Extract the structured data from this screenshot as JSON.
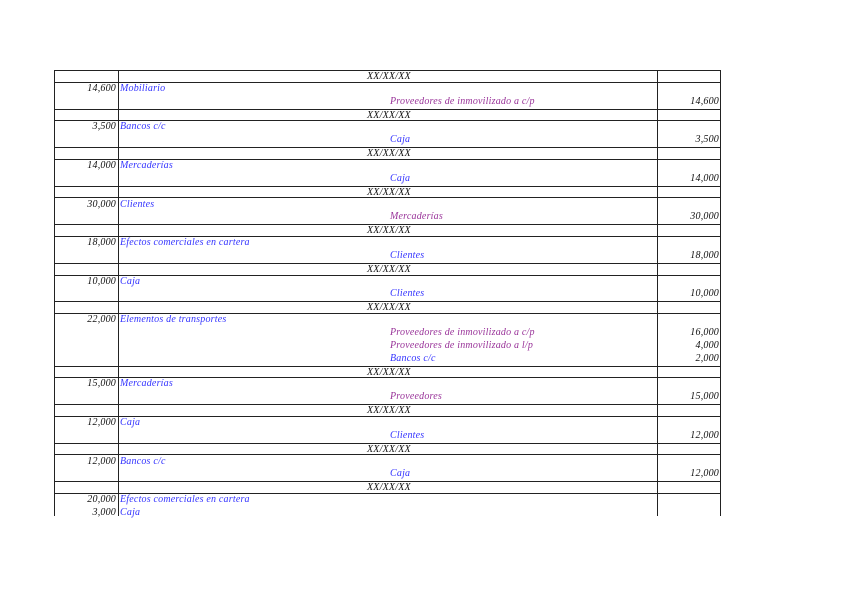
{
  "colors": {
    "debit_account": "#3333ff",
    "credit_blue": "#3333ff",
    "credit_purple": "#993399",
    "text": "#111111"
  },
  "entries": [
    {
      "date": "XX/XX/XX",
      "debits": [
        {
          "amount": "14,600",
          "account": "Mobiliario"
        }
      ],
      "credits": [
        {
          "account": "Proveedores de inmovilizado a c/p",
          "color": "purple",
          "amount": "14,600"
        }
      ]
    },
    {
      "date": "XX/XX/XX",
      "debits": [
        {
          "amount": "3,500",
          "account": "Bancos c/c"
        }
      ],
      "credits": [
        {
          "account": "Caja",
          "color": "blue",
          "amount": "3,500"
        }
      ]
    },
    {
      "date": "XX/XX/XX",
      "debits": [
        {
          "amount": "14,000",
          "account": "Mercaderías"
        }
      ],
      "credits": [
        {
          "account": "Caja",
          "color": "blue",
          "amount": "14,000"
        }
      ]
    },
    {
      "date": "XX/XX/XX",
      "debits": [
        {
          "amount": "30,000",
          "account": "Clientes"
        }
      ],
      "credits": [
        {
          "account": "Mercaderías",
          "color": "purple",
          "amount": "30,000"
        }
      ]
    },
    {
      "date": "XX/XX/XX",
      "debits": [
        {
          "amount": "18,000",
          "account": "Efectos comerciales en cartera"
        }
      ],
      "credits": [
        {
          "account": "Clientes",
          "color": "blue",
          "amount": "18,000"
        }
      ]
    },
    {
      "date": "XX/XX/XX",
      "debits": [
        {
          "amount": "10,000",
          "account": "Caja"
        }
      ],
      "credits": [
        {
          "account": "Clientes",
          "color": "blue",
          "amount": "10,000"
        }
      ]
    },
    {
      "date": "XX/XX/XX",
      "debits": [
        {
          "amount": "22,000",
          "account": "Elementos de transportes"
        }
      ],
      "credits": [
        {
          "account": "Proveedores de inmovilizado a c/p",
          "color": "purple",
          "amount": "16,000"
        },
        {
          "account": "Proveedores de inmovilizado a l/p",
          "color": "purple",
          "amount": "4,000"
        },
        {
          "account": "Bancos c/c",
          "color": "blue",
          "amount": "2,000"
        }
      ]
    },
    {
      "date": "XX/XX/XX",
      "debits": [
        {
          "amount": "15,000",
          "account": "Mercaderías"
        }
      ],
      "credits": [
        {
          "account": "Proveedores",
          "color": "purple",
          "amount": "15,000"
        }
      ]
    },
    {
      "date": "XX/XX/XX",
      "debits": [
        {
          "amount": "12,000",
          "account": "Caja"
        }
      ],
      "credits": [
        {
          "account": "Clientes",
          "color": "blue",
          "amount": "12,000"
        }
      ]
    },
    {
      "date": "XX/XX/XX",
      "debits": [
        {
          "amount": "12,000",
          "account": "Bancos c/c"
        }
      ],
      "credits": [
        {
          "account": "Caja",
          "color": "blue",
          "amount": "12,000"
        }
      ]
    },
    {
      "date": "XX/XX/XX",
      "debits": [
        {
          "amount": "20,000",
          "account": "Efectos comerciales en cartera"
        },
        {
          "amount": "3,000",
          "account": "Caja"
        }
      ],
      "credits": []
    }
  ]
}
